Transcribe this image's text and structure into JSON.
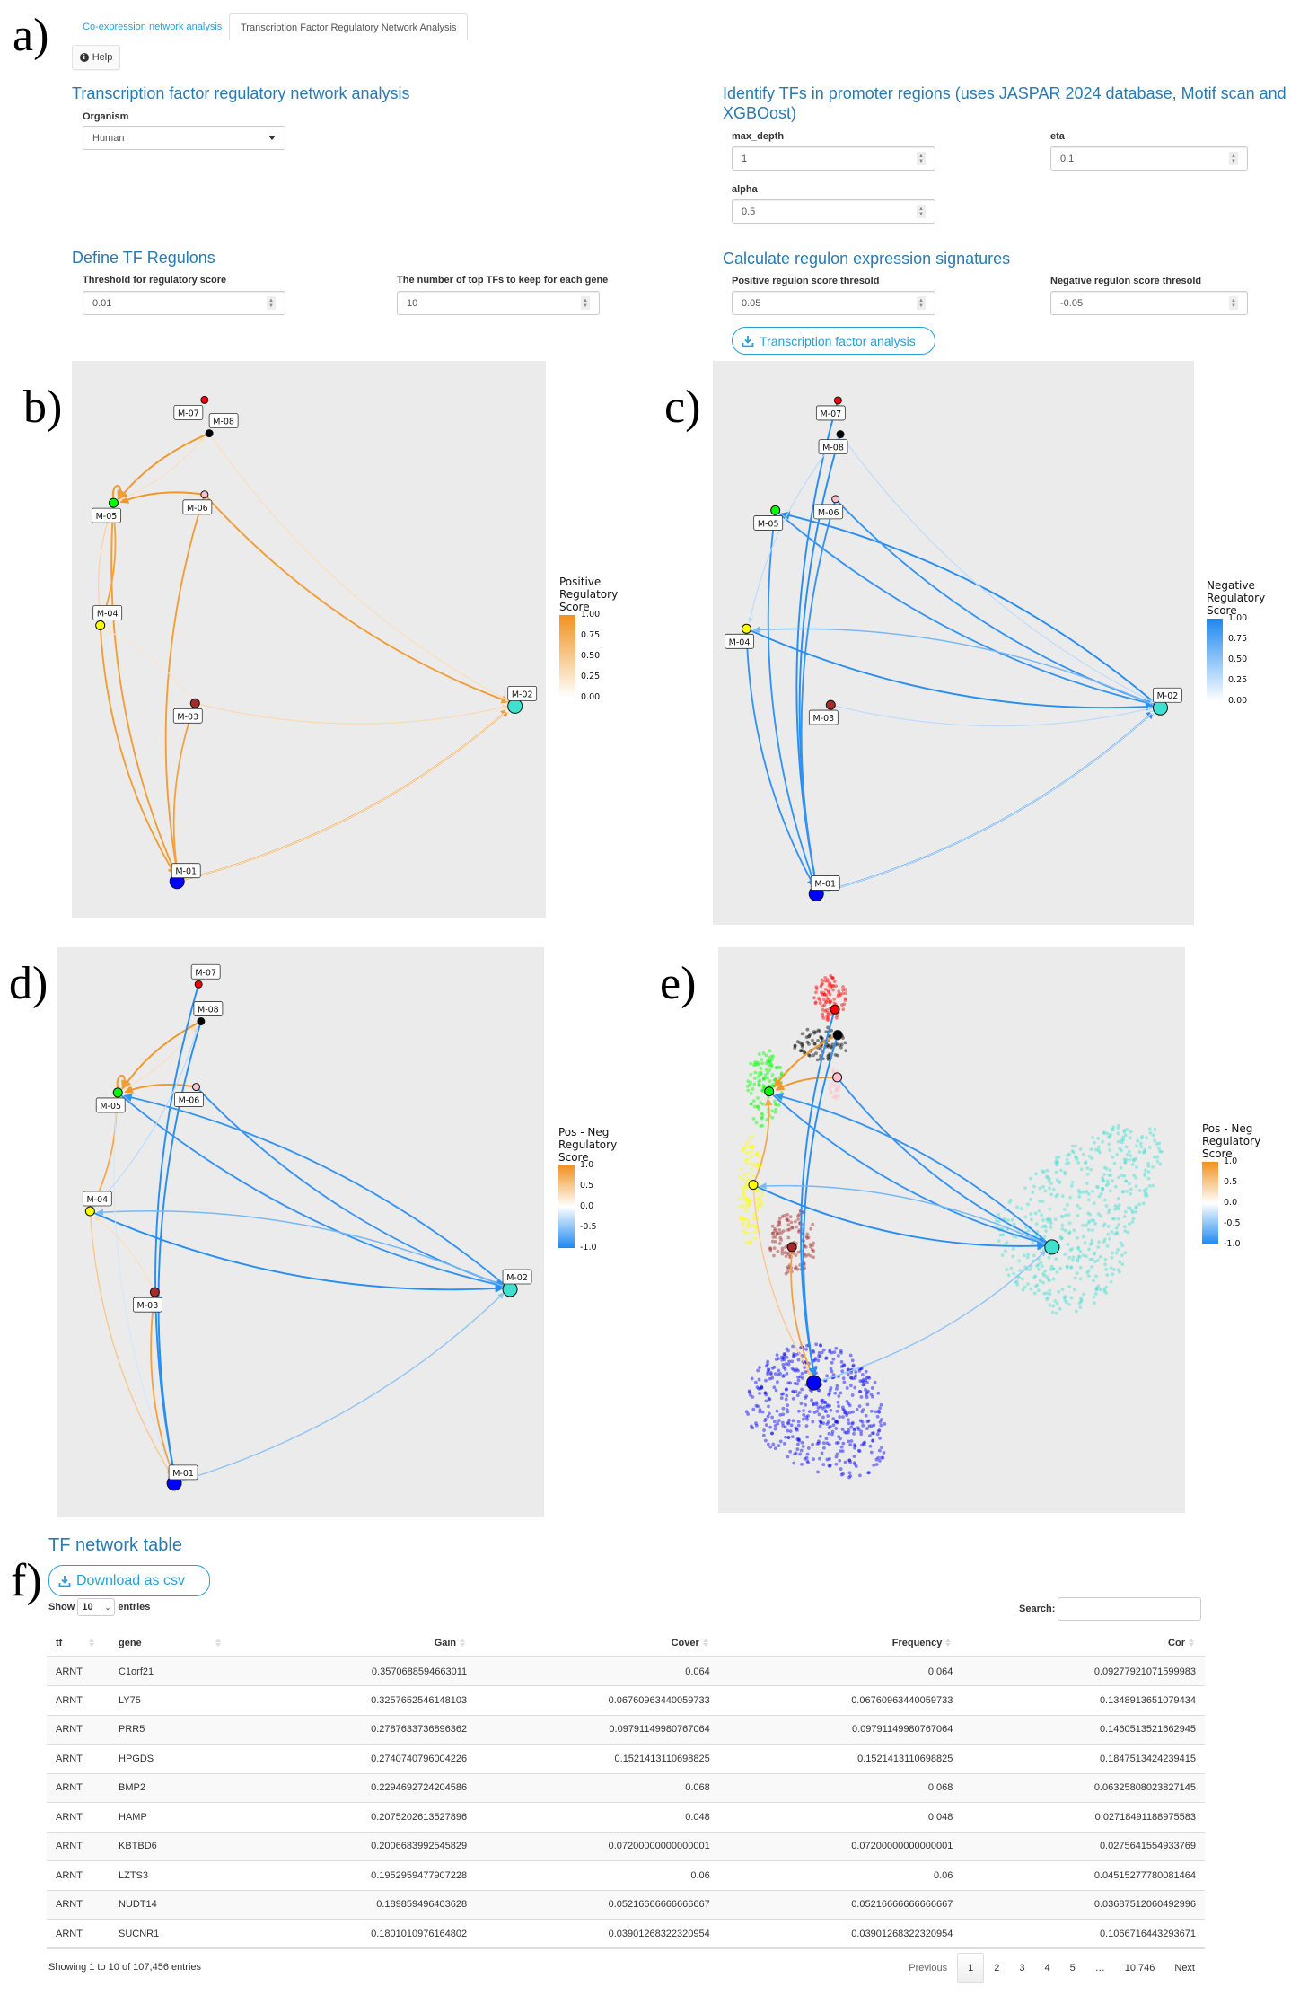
{
  "panel_letters": {
    "a": "a)",
    "b": "b)",
    "c": "c)",
    "d": "d)",
    "e": "e)",
    "f": "f)"
  },
  "tabs": [
    {
      "label": "Co-expression network analysis",
      "active": false
    },
    {
      "label": "Transcription Factor Regulatory Network Analysis",
      "active": true
    }
  ],
  "help_label": "Help",
  "left_section": {
    "heading": "Transcription factor regulatory network analysis",
    "organism_label": "Organism",
    "organism_value": "Human"
  },
  "right_section": {
    "heading_line1": "Identify TFs in promoter regions (uses JASPAR 2024 database, Motif scan and",
    "heading_line2": "XGBOost)",
    "max_depth_label": "max_depth",
    "max_depth_value": "1",
    "eta_label": "eta",
    "eta_value": "0.1",
    "alpha_label": "alpha",
    "alpha_value": "0.5"
  },
  "regulons": {
    "heading": "Define TF Regulons",
    "threshold_label": "Threshold for regulatory score",
    "threshold_value": "0.01",
    "top_tfs_label": "The number of top TFs to keep for each gene",
    "top_tfs_value": "10"
  },
  "signatures": {
    "heading": "Calculate regulon expression signatures",
    "pos_label": "Positive regulon score thresold",
    "pos_value": "0.05",
    "neg_label": "Negative regulon score thresold",
    "neg_value": "-0.05",
    "run_button": "Transcription factor analysis"
  },
  "colors": {
    "heading_blue": "#2a7ab0",
    "link_blue": "#2a9fd6",
    "positive": "#f0921e",
    "negative": "#1e88f0",
    "plot_bg": "#ebebeb"
  },
  "chart_data": [
    {
      "id": "b",
      "type": "network",
      "legend": {
        "title": [
          "Positive",
          "Regulatory",
          "Score"
        ],
        "ticks": [
          "1.00",
          "0.75",
          "0.50",
          "0.25",
          "0.00"
        ],
        "range": [
          0,
          1
        ],
        "scale": "positive"
      },
      "nodes": [
        {
          "id": "M-01",
          "color": "#0000ff",
          "size": "large"
        },
        {
          "id": "M-02",
          "color": "#40e0d0",
          "size": "large"
        },
        {
          "id": "M-03",
          "color": "#a52a2a",
          "size": "medium"
        },
        {
          "id": "M-04",
          "color": "#ffff00",
          "size": "medium"
        },
        {
          "id": "M-05",
          "color": "#00ff00",
          "size": "medium"
        },
        {
          "id": "M-06",
          "color": "#ffc0cb",
          "size": "small"
        },
        {
          "id": "M-07",
          "color": "#ff0000",
          "size": "small"
        },
        {
          "id": "M-08",
          "color": "#000000",
          "size": "small"
        }
      ],
      "edges": [
        {
          "from": "M-08",
          "to": "M-05",
          "score": 0.95
        },
        {
          "from": "M-06",
          "to": "M-05",
          "score": 0.95
        },
        {
          "from": "M-05",
          "to": "M-05",
          "score": 0.9
        },
        {
          "from": "M-05",
          "to": "M-08",
          "score": 0.3
        },
        {
          "from": "M-06",
          "to": "M-02",
          "score": 0.9
        },
        {
          "from": "M-08",
          "to": "M-02",
          "score": 0.3
        },
        {
          "from": "M-05",
          "to": "M-01",
          "score": 0.9
        },
        {
          "from": "M-04",
          "to": "M-01",
          "score": 0.9
        },
        {
          "from": "M-04",
          "to": "M-05",
          "score": 0.85
        },
        {
          "from": "M-05",
          "to": "M-04",
          "score": 0.4
        },
        {
          "from": "M-06",
          "to": "M-01",
          "score": 0.9
        },
        {
          "from": "M-03",
          "to": "M-01",
          "score": 0.85
        },
        {
          "from": "M-01",
          "to": "M-02",
          "score": 0.9
        },
        {
          "from": "M-03",
          "to": "M-02",
          "score": 0.35
        },
        {
          "from": "M-03",
          "to": "M-04",
          "score": 0.25
        },
        {
          "from": "M-01",
          "to": "M-02",
          "score": 0.1
        }
      ]
    },
    {
      "id": "c",
      "type": "network",
      "legend": {
        "title": [
          "Negative",
          "Regulatory",
          "Score"
        ],
        "ticks": [
          "1.00",
          "0.75",
          "0.50",
          "0.25",
          "0.00"
        ],
        "range": [
          0,
          1
        ],
        "scale": "negative"
      },
      "nodes": [
        {
          "id": "M-01",
          "color": "#0000ff",
          "size": "large"
        },
        {
          "id": "M-02",
          "color": "#40e0d0",
          "size": "large"
        },
        {
          "id": "M-03",
          "color": "#a52a2a",
          "size": "medium"
        },
        {
          "id": "M-04",
          "color": "#ffff00",
          "size": "medium"
        },
        {
          "id": "M-05",
          "color": "#00ff00",
          "size": "medium"
        },
        {
          "id": "M-06",
          "color": "#ffc0cb",
          "size": "small"
        },
        {
          "id": "M-07",
          "color": "#ff0000",
          "size": "small"
        },
        {
          "id": "M-08",
          "color": "#000000",
          "size": "small"
        }
      ],
      "edges": [
        {
          "from": "M-07",
          "to": "M-01",
          "score": 0.95
        },
        {
          "from": "M-08",
          "to": "M-01",
          "score": 0.95
        },
        {
          "from": "M-06",
          "to": "M-01",
          "score": 0.9
        },
        {
          "from": "M-05",
          "to": "M-01",
          "score": 0.9
        },
        {
          "from": "M-04",
          "to": "M-01",
          "score": 0.9
        },
        {
          "from": "M-02",
          "to": "M-05",
          "score": 0.95
        },
        {
          "from": "M-05",
          "to": "M-02",
          "score": 0.9
        },
        {
          "from": "M-06",
          "to": "M-02",
          "score": 0.9
        },
        {
          "from": "M-04",
          "to": "M-02",
          "score": 0.95
        },
        {
          "from": "M-02",
          "to": "M-04",
          "score": 0.6
        },
        {
          "from": "M-01",
          "to": "M-02",
          "score": 0.9
        },
        {
          "from": "M-08",
          "to": "M-04",
          "score": 0.3
        },
        {
          "from": "M-08",
          "to": "M-02",
          "score": 0.3
        },
        {
          "from": "M-03",
          "to": "M-02",
          "score": 0.3
        },
        {
          "from": "M-01",
          "to": "M-02",
          "score": 0.15
        }
      ]
    },
    {
      "id": "d",
      "type": "network",
      "legend": {
        "title": [
          "Pos - Neg",
          "Regulatory",
          "Score"
        ],
        "ticks": [
          "1.0",
          "0.5",
          "0.0",
          "-0.5",
          "-1.0"
        ],
        "range": [
          -1,
          1
        ],
        "scale": "diverging"
      },
      "nodes": [
        {
          "id": "M-01",
          "color": "#0000ff",
          "size": "large"
        },
        {
          "id": "M-02",
          "color": "#40e0d0",
          "size": "large"
        },
        {
          "id": "M-03",
          "color": "#a52a2a",
          "size": "medium"
        },
        {
          "id": "M-04",
          "color": "#ffff00",
          "size": "medium"
        },
        {
          "id": "M-05",
          "color": "#00ff00",
          "size": "medium"
        },
        {
          "id": "M-06",
          "color": "#ffc0cb",
          "size": "small"
        },
        {
          "id": "M-07",
          "color": "#ff0000",
          "size": "small"
        },
        {
          "id": "M-08",
          "color": "#000000",
          "size": "small"
        }
      ],
      "edges": [
        {
          "from": "M-08",
          "to": "M-05",
          "score": 0.95
        },
        {
          "from": "M-06",
          "to": "M-05",
          "score": 0.95
        },
        {
          "from": "M-05",
          "to": "M-05",
          "score": 0.9
        },
        {
          "from": "M-05",
          "to": "M-08",
          "score": 0.3
        },
        {
          "from": "M-04",
          "to": "M-05",
          "score": 0.8
        },
        {
          "from": "M-04",
          "to": "M-01",
          "score": 0.5
        },
        {
          "from": "M-03",
          "to": "M-01",
          "score": 0.85
        },
        {
          "from": "M-03",
          "to": "M-04",
          "score": 0.3
        },
        {
          "from": "M-07",
          "to": "M-01",
          "score": -0.95
        },
        {
          "from": "M-08",
          "to": "M-01",
          "score": -0.95
        },
        {
          "from": "M-02",
          "to": "M-05",
          "score": -0.9
        },
        {
          "from": "M-05",
          "to": "M-02",
          "score": -0.9
        },
        {
          "from": "M-06",
          "to": "M-02",
          "score": -0.9
        },
        {
          "from": "M-04",
          "to": "M-02",
          "score": -0.95
        },
        {
          "from": "M-02",
          "to": "M-04",
          "score": -0.6
        },
        {
          "from": "M-01",
          "to": "M-02",
          "score": -0.5
        },
        {
          "from": "M-05",
          "to": "M-01",
          "score": -0.2
        },
        {
          "from": "M-04",
          "to": "M-08",
          "score": -0.3
        }
      ]
    },
    {
      "id": "e",
      "type": "scatter-network",
      "legend": {
        "title": [
          "Pos - Neg",
          "Regulatory",
          "Score"
        ],
        "ticks": [
          "1.0",
          "0.5",
          "0.0",
          "-0.5",
          "-1.0"
        ],
        "range": [
          -1,
          1
        ],
        "scale": "diverging"
      },
      "clusters": [
        {
          "id": "M-01",
          "color": "#0000ff"
        },
        {
          "id": "M-02",
          "color": "#40e0d0"
        },
        {
          "id": "M-03",
          "color": "#a52a2a"
        },
        {
          "id": "M-04",
          "color": "#ffff00"
        },
        {
          "id": "M-05",
          "color": "#00ff00"
        },
        {
          "id": "M-06",
          "color": "#ffc0cb"
        },
        {
          "id": "M-07",
          "color": "#ff0000"
        },
        {
          "id": "M-08",
          "color": "#000000"
        }
      ],
      "edges": [
        {
          "from": "M-08",
          "to": "M-05",
          "score": 0.95
        },
        {
          "from": "M-06",
          "to": "M-05",
          "score": 0.95
        },
        {
          "from": "M-04",
          "to": "M-05",
          "score": 0.8
        },
        {
          "from": "M-03",
          "to": "M-01",
          "score": 0.85
        },
        {
          "from": "M-04",
          "to": "M-01",
          "score": 0.5
        },
        {
          "from": "M-07",
          "to": "M-01",
          "score": -0.95
        },
        {
          "from": "M-08",
          "to": "M-01",
          "score": -0.95
        },
        {
          "from": "M-02",
          "to": "M-05",
          "score": -0.9
        },
        {
          "from": "M-05",
          "to": "M-02",
          "score": -0.9
        },
        {
          "from": "M-06",
          "to": "M-02",
          "score": -0.9
        },
        {
          "from": "M-04",
          "to": "M-02",
          "score": -0.95
        },
        {
          "from": "M-02",
          "to": "M-04",
          "score": -0.6
        },
        {
          "from": "M-01",
          "to": "M-02",
          "score": -0.5
        }
      ]
    }
  ],
  "table_section": {
    "heading": "TF network table",
    "download_label": "Download as csv",
    "show_label": "Show",
    "show_value": "10",
    "entries_label": "entries",
    "search_label": "Search:",
    "search_value": "",
    "columns": [
      "tf",
      "gene",
      "Gain",
      "Cover",
      "Frequency",
      "Cor"
    ],
    "rows": [
      [
        "ARNT",
        "C1orf21",
        "0.3570688594663011",
        "0.064",
        "0.064",
        "0.09277921071599983"
      ],
      [
        "ARNT",
        "LY75",
        "0.3257652546148103",
        "0.06760963440059733",
        "0.06760963440059733",
        "0.1348913651079434"
      ],
      [
        "ARNT",
        "PRR5",
        "0.2787633736896362",
        "0.09791149980767064",
        "0.09791149980767064",
        "0.1460513521662945"
      ],
      [
        "ARNT",
        "HPGDS",
        "0.2740740796004226",
        "0.1521413110698825",
        "0.1521413110698825",
        "0.1847513424239415"
      ],
      [
        "ARNT",
        "BMP2",
        "0.2294692724204586",
        "0.068",
        "0.068",
        "0.06325808023827145"
      ],
      [
        "ARNT",
        "HAMP",
        "0.2075202613527896",
        "0.048",
        "0.048",
        "0.02718491188975583"
      ],
      [
        "ARNT",
        "KBTBD6",
        "0.2006683992545829",
        "0.07200000000000001",
        "0.07200000000000001",
        "0.0275641554933769"
      ],
      [
        "ARNT",
        "LZTS3",
        "0.1952959477907228",
        "0.06",
        "0.06",
        "0.04515277780081464"
      ],
      [
        "ARNT",
        "NUDT14",
        "0.189859496403628",
        "0.05216666666666667",
        "0.05216666666666667",
        "0.03687512060492996"
      ],
      [
        "ARNT",
        "SUCNR1",
        "0.1801010976164802",
        "0.03901268322320954",
        "0.03901268322320954",
        "0.1066716443293671"
      ]
    ],
    "info": "Showing 1 to 10 of 107,456 entries",
    "pagination": [
      "Previous",
      "1",
      "2",
      "3",
      "4",
      "5",
      "…",
      "10,746",
      "Next"
    ],
    "current_page": "1"
  }
}
